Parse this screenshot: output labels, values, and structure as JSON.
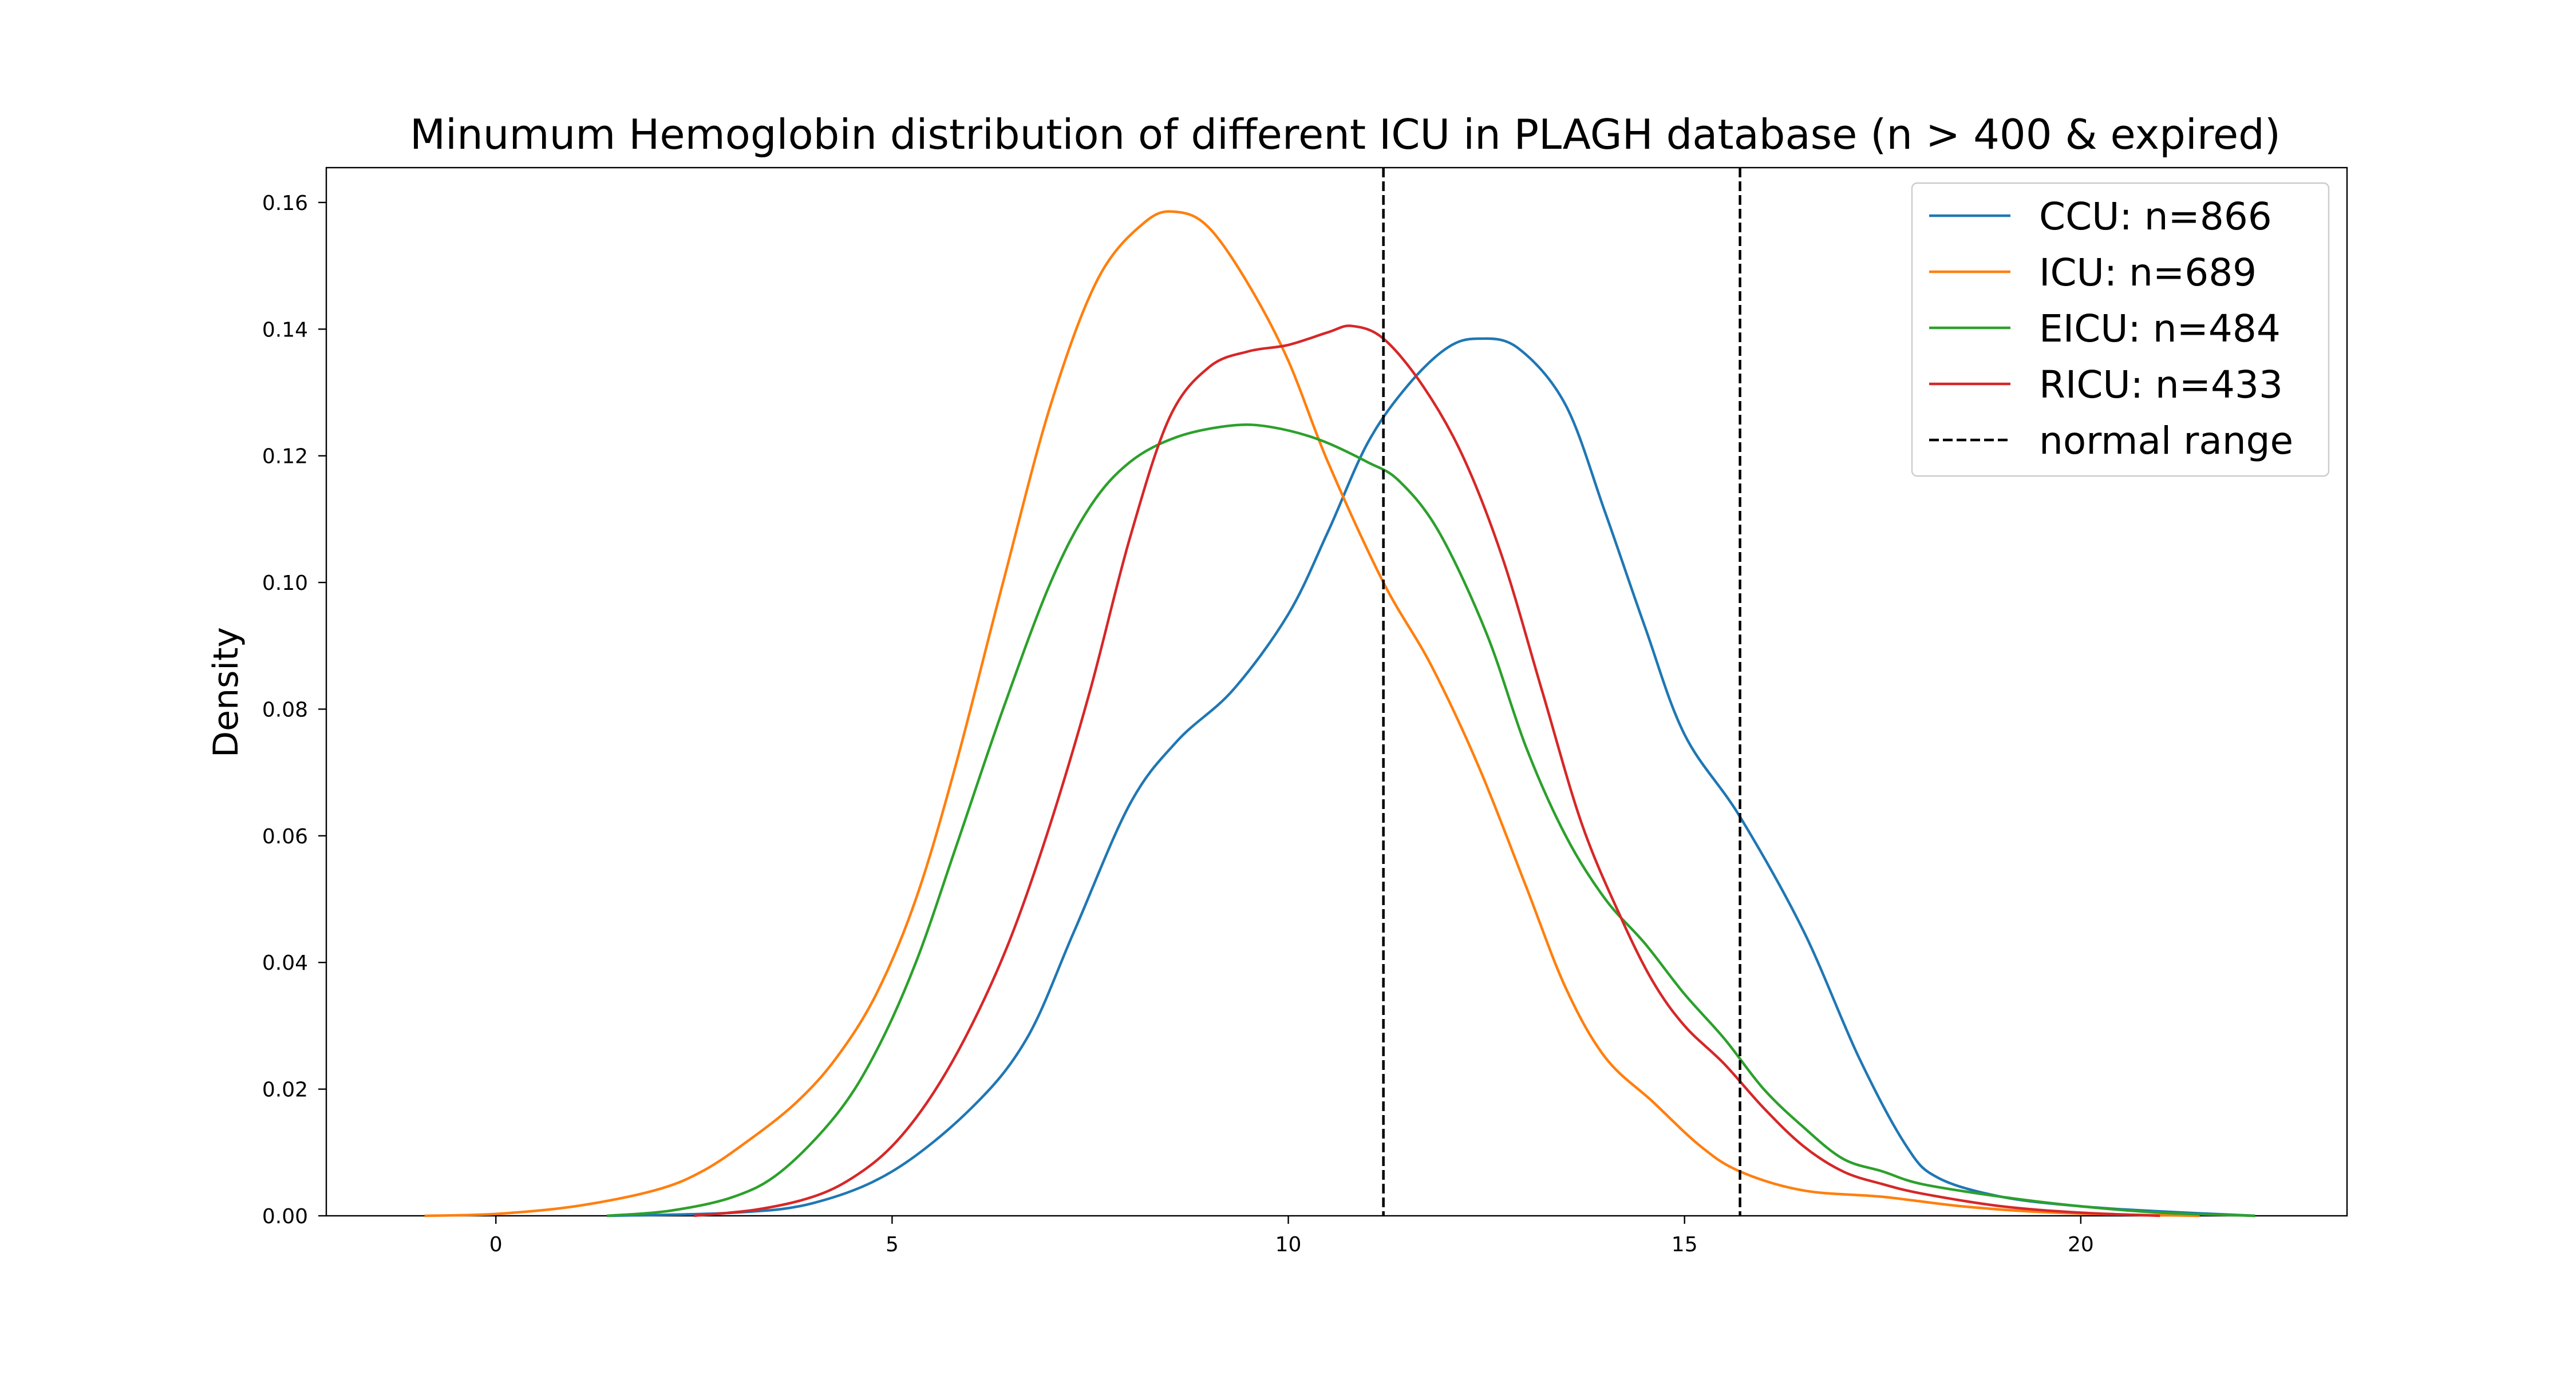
{
  "chart_data": {
    "type": "line",
    "title": "Minumum Hemoglobin distribution of different ICU in PLAGH database (n > 400 & expired)",
    "xlabel": "",
    "ylabel": "Density",
    "xlim": [
      -2.14,
      23.36
    ],
    "ylim": [
      0,
      0.1655
    ],
    "x_ticks": [
      0,
      5,
      10,
      15,
      20
    ],
    "y_ticks": [
      0.0,
      0.02,
      0.04,
      0.06,
      0.08,
      0.1,
      0.12,
      0.14,
      0.16
    ],
    "y_tick_labels": [
      "0.00",
      "0.02",
      "0.04",
      "0.06",
      "0.08",
      "0.10",
      "0.12",
      "0.14",
      "0.16"
    ],
    "grid": false,
    "legend_position": "top-right",
    "series": [
      {
        "name": "CCU: n=866",
        "color": "#1f77b4",
        "points": [
          [
            1.4,
            0.0
          ],
          [
            3.0,
            0.0005
          ],
          [
            4.0,
            0.002
          ],
          [
            5.0,
            0.007
          ],
          [
            6.0,
            0.017
          ],
          [
            6.7,
            0.028
          ],
          [
            7.3,
            0.045
          ],
          [
            8.0,
            0.065
          ],
          [
            8.6,
            0.075
          ],
          [
            9.3,
            0.083
          ],
          [
            10.0,
            0.095
          ],
          [
            10.5,
            0.108
          ],
          [
            11.0,
            0.122
          ],
          [
            11.5,
            0.131
          ],
          [
            12.0,
            0.137
          ],
          [
            12.4,
            0.1385
          ],
          [
            12.9,
            0.137
          ],
          [
            13.5,
            0.128
          ],
          [
            14.0,
            0.111
          ],
          [
            14.5,
            0.093
          ],
          [
            15.0,
            0.076
          ],
          [
            15.7,
            0.063
          ],
          [
            16.5,
            0.045
          ],
          [
            17.2,
            0.025
          ],
          [
            17.8,
            0.011
          ],
          [
            18.2,
            0.006
          ],
          [
            19.0,
            0.003
          ],
          [
            20.0,
            0.0015
          ],
          [
            21.0,
            0.0007
          ],
          [
            22.2,
            0.0
          ]
        ]
      },
      {
        "name": "ICU: n=689",
        "color": "#ff7f0e",
        "points": [
          [
            -0.9,
            0.0
          ],
          [
            0.0,
            0.0003
          ],
          [
            1.0,
            0.0015
          ],
          [
            2.0,
            0.004
          ],
          [
            2.6,
            0.007
          ],
          [
            3.2,
            0.012
          ],
          [
            3.8,
            0.018
          ],
          [
            4.3,
            0.025
          ],
          [
            4.8,
            0.035
          ],
          [
            5.3,
            0.05
          ],
          [
            5.8,
            0.071
          ],
          [
            6.4,
            0.1
          ],
          [
            7.0,
            0.128
          ],
          [
            7.6,
            0.148
          ],
          [
            8.2,
            0.157
          ],
          [
            8.6,
            0.1585
          ],
          [
            9.0,
            0.156
          ],
          [
            9.5,
            0.147
          ],
          [
            10.0,
            0.135
          ],
          [
            10.5,
            0.119
          ],
          [
            11.2,
            0.1
          ],
          [
            11.8,
            0.087
          ],
          [
            12.4,
            0.071
          ],
          [
            13.0,
            0.052
          ],
          [
            13.5,
            0.036
          ],
          [
            14.0,
            0.025
          ],
          [
            14.6,
            0.018
          ],
          [
            15.2,
            0.011
          ],
          [
            15.7,
            0.007
          ],
          [
            16.5,
            0.004
          ],
          [
            17.5,
            0.003
          ],
          [
            18.5,
            0.0015
          ],
          [
            19.5,
            0.0006
          ],
          [
            20.5,
            0.0002
          ],
          [
            21.5,
            0.0
          ]
        ]
      },
      {
        "name": "EICU: n=484",
        "color": "#2ca02c",
        "points": [
          [
            1.4,
            0.0
          ],
          [
            2.2,
            0.0008
          ],
          [
            3.0,
            0.003
          ],
          [
            3.6,
            0.007
          ],
          [
            4.3,
            0.016
          ],
          [
            4.8,
            0.026
          ],
          [
            5.3,
            0.04
          ],
          [
            5.8,
            0.058
          ],
          [
            6.4,
            0.08
          ],
          [
            7.0,
            0.1
          ],
          [
            7.5,
            0.112
          ],
          [
            8.0,
            0.119
          ],
          [
            8.6,
            0.123
          ],
          [
            9.3,
            0.1248
          ],
          [
            9.8,
            0.1245
          ],
          [
            10.4,
            0.1225
          ],
          [
            11.0,
            0.119
          ],
          [
            11.4,
            0.116
          ],
          [
            11.9,
            0.108
          ],
          [
            12.5,
            0.092
          ],
          [
            13.0,
            0.074
          ],
          [
            13.5,
            0.06
          ],
          [
            14.0,
            0.05
          ],
          [
            14.5,
            0.043
          ],
          [
            15.0,
            0.035
          ],
          [
            15.5,
            0.028
          ],
          [
            16.0,
            0.02
          ],
          [
            16.5,
            0.014
          ],
          [
            17.0,
            0.009
          ],
          [
            17.5,
            0.007
          ],
          [
            18.0,
            0.005
          ],
          [
            19.0,
            0.003
          ],
          [
            20.0,
            0.0015
          ],
          [
            21.0,
            0.0005
          ],
          [
            22.2,
            0.0
          ]
        ]
      },
      {
        "name": "RICU: n=433",
        "color": "#d62728",
        "points": [
          [
            2.5,
            0.0
          ],
          [
            3.3,
            0.001
          ],
          [
            4.0,
            0.003
          ],
          [
            4.5,
            0.006
          ],
          [
            5.0,
            0.011
          ],
          [
            5.5,
            0.019
          ],
          [
            6.0,
            0.03
          ],
          [
            6.5,
            0.044
          ],
          [
            7.0,
            0.062
          ],
          [
            7.5,
            0.083
          ],
          [
            8.0,
            0.107
          ],
          [
            8.5,
            0.126
          ],
          [
            9.0,
            0.134
          ],
          [
            9.5,
            0.1365
          ],
          [
            10.0,
            0.1375
          ],
          [
            10.5,
            0.1395
          ],
          [
            10.8,
            0.1405
          ],
          [
            11.2,
            0.1385
          ],
          [
            11.7,
            0.131
          ],
          [
            12.2,
            0.12
          ],
          [
            12.7,
            0.104
          ],
          [
            13.2,
            0.083
          ],
          [
            13.7,
            0.062
          ],
          [
            14.2,
            0.047
          ],
          [
            14.6,
            0.037
          ],
          [
            15.0,
            0.03
          ],
          [
            15.5,
            0.024
          ],
          [
            16.0,
            0.017
          ],
          [
            16.5,
            0.011
          ],
          [
            17.0,
            0.007
          ],
          [
            17.5,
            0.005
          ],
          [
            18.0,
            0.0035
          ],
          [
            19.0,
            0.0015
          ],
          [
            20.0,
            0.0005
          ],
          [
            21.0,
            0.0
          ]
        ]
      }
    ],
    "reference_lines": {
      "name": "normal range",
      "orientation": "vertical",
      "color": "#000000",
      "style": "dashed",
      "x": [
        11.2,
        15.7
      ]
    }
  }
}
